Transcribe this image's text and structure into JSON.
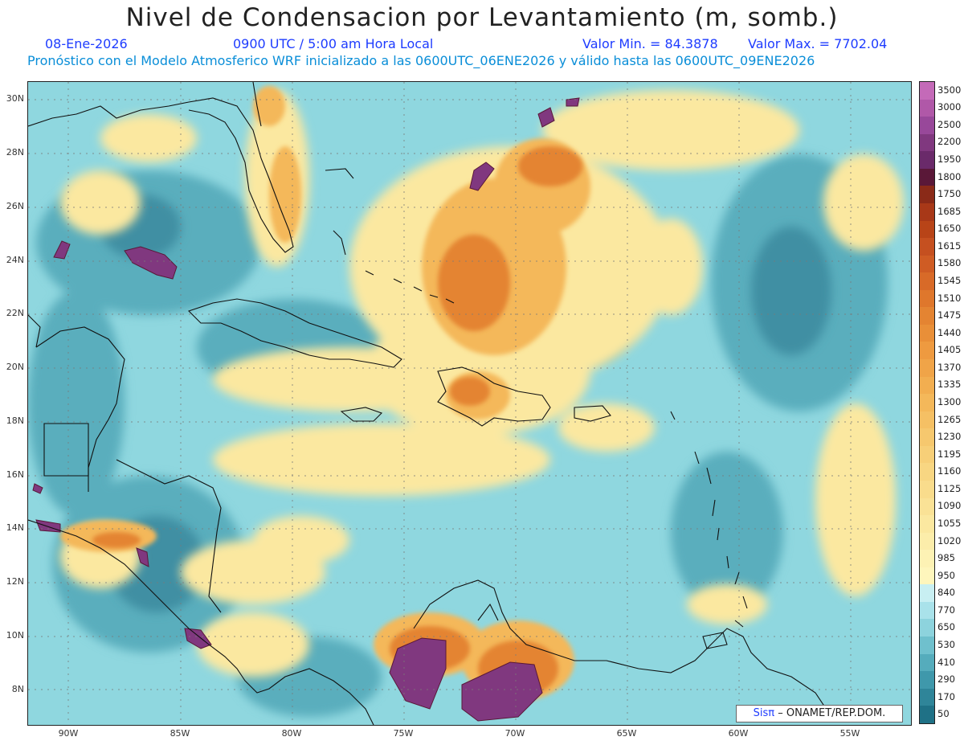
{
  "header": {
    "title": "Nivel de Condensacion por Levantamiento (m, somb.)",
    "date": "08-Ene-2026",
    "time": "0900 UTC / 5:00 am Hora Local",
    "min_label": "Valor Min. = 84.3878",
    "max_label": "Valor Max. = 7702.04",
    "forecast_info": "Pronóstico con el Modelo Atmosferico WRF inicializado a las 0600UTC_06ENE2026 y válido hasta las  0600UTC_09ENE2026"
  },
  "map": {
    "lat_labels": [
      "30N",
      "28N",
      "26N",
      "24N",
      "22N",
      "20N",
      "18N",
      "16N",
      "14N",
      "12N",
      "10N",
      "8N"
    ],
    "lon_labels": [
      "90W",
      "85W",
      "80W",
      "75W",
      "70W",
      "65W",
      "60W",
      "55W"
    ],
    "credit_brand": "Sisπ",
    "credit_org": "– ONAMET/REP.DOM."
  },
  "colorbar": {
    "labels": [
      "3500",
      "3000",
      "2500",
      "2200",
      "1950",
      "1800",
      "1750",
      "1685",
      "1650",
      "1615",
      "1580",
      "1545",
      "1510",
      "1475",
      "1440",
      "1405",
      "1370",
      "1335",
      "1300",
      "1265",
      "1230",
      "1195",
      "1160",
      "1125",
      "1090",
      "1055",
      "1020",
      "985",
      "950",
      "840",
      "770",
      "650",
      "530",
      "410",
      "290",
      "170",
      "50"
    ],
    "colors": [
      "#c46ab8",
      "#b058a8",
      "#98489a",
      "#80387f",
      "#6a2a6a",
      "#5a1838",
      "#8a2a18",
      "#a83818",
      "#b84418",
      "#c55020",
      "#cf5c24",
      "#d86a28",
      "#df772c",
      "#e48432",
      "#e98f38",
      "#ee9a40",
      "#f0a448",
      "#f2ae50",
      "#f4b85a",
      "#f5c064",
      "#f6c86e",
      "#f7cf78",
      "#f8d682",
      "#f9dc8c",
      "#fae296",
      "#fbe8a0",
      "#fcedaa",
      "#fdf2b4",
      "#fef6bc",
      "#c8eff2",
      "#a9e2ea",
      "#8dd3dd",
      "#6fc0cd",
      "#55acbc",
      "#3f98ab",
      "#2f8599",
      "#1f7186"
    ]
  }
}
